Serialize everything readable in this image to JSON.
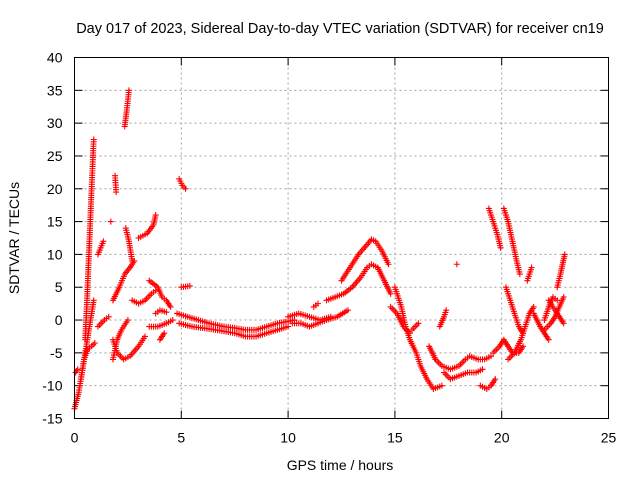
{
  "chart_data": {
    "type": "scatter",
    "title": "Day 017 of 2023, Sidereal Day-to-day VTEC variation (SDTVAR) for receiver cn19",
    "xlabel": "GPS time / hours",
    "ylabel": "SDTVAR / TECUs",
    "xlim": [
      0,
      25
    ],
    "ylim": [
      -15,
      40
    ],
    "xticks": [
      0,
      5,
      10,
      15,
      20,
      25
    ],
    "yticks": [
      -15,
      -10,
      -5,
      0,
      5,
      10,
      15,
      20,
      25,
      30,
      35,
      40
    ],
    "grid": true,
    "marker": "+",
    "color": "#ff0000",
    "tracks": [
      {
        "name": "track-01",
        "points": [
          [
            0.0,
            -13.5
          ],
          [
            0.2,
            -11
          ],
          [
            0.4,
            -7
          ],
          [
            0.6,
            -3
          ],
          [
            0.8,
            1
          ],
          [
            0.9,
            3
          ]
        ]
      },
      {
        "name": "track-02",
        "points": [
          [
            0.3,
            -9
          ],
          [
            0.45,
            -6
          ],
          [
            0.6,
            -4.5
          ],
          [
            0.8,
            -4
          ],
          [
            0.95,
            -3.5
          ]
        ]
      },
      {
        "name": "track-03",
        "points": [
          [
            0.05,
            -8
          ],
          [
            0.15,
            -7.5
          ]
        ]
      },
      {
        "name": "track-04",
        "points": [
          [
            0.5,
            -3
          ],
          [
            0.6,
            4
          ],
          [
            0.7,
            12
          ],
          [
            0.8,
            20
          ],
          [
            0.9,
            27.5
          ]
        ]
      },
      {
        "name": "track-05",
        "points": [
          [
            1.1,
            10
          ],
          [
            1.35,
            12
          ]
        ]
      },
      {
        "name": "track-06",
        "points": [
          [
            1.1,
            -1
          ],
          [
            1.4,
            0
          ],
          [
            1.6,
            0.5
          ]
        ]
      },
      {
        "name": "track-07",
        "points": [
          [
            1.7,
            15
          ]
        ]
      },
      {
        "name": "track-08",
        "points": [
          [
            1.9,
            22
          ],
          [
            1.95,
            19.5
          ]
        ]
      },
      {
        "name": "track-09",
        "points": [
          [
            2.35,
            29.5
          ],
          [
            2.45,
            32
          ],
          [
            2.55,
            35
          ]
        ]
      },
      {
        "name": "track-10",
        "points": [
          [
            1.8,
            3
          ],
          [
            2.1,
            5
          ],
          [
            2.35,
            7
          ],
          [
            2.6,
            8
          ],
          [
            2.8,
            9
          ]
        ]
      },
      {
        "name": "track-11",
        "points": [
          [
            2.4,
            14
          ],
          [
            2.55,
            12
          ],
          [
            2.7,
            9
          ]
        ]
      },
      {
        "name": "track-12",
        "points": [
          [
            1.8,
            -3
          ],
          [
            2.0,
            -5
          ],
          [
            2.3,
            -6
          ],
          [
            2.6,
            -5.5
          ],
          [
            3.0,
            -4
          ],
          [
            3.3,
            -2.5
          ]
        ]
      },
      {
        "name": "track-13",
        "points": [
          [
            1.8,
            -6
          ],
          [
            2.0,
            -3
          ],
          [
            2.2,
            -1.5
          ],
          [
            2.5,
            0
          ]
        ]
      },
      {
        "name": "track-14",
        "points": [
          [
            2.7,
            3
          ],
          [
            3.0,
            2.5
          ],
          [
            3.3,
            3
          ],
          [
            3.6,
            4
          ],
          [
            3.8,
            4.5
          ]
        ]
      },
      {
        "name": "track-15",
        "points": [
          [
            3.0,
            12.5
          ],
          [
            3.4,
            13.2
          ],
          [
            3.7,
            14.5
          ],
          [
            3.8,
            16
          ]
        ]
      },
      {
        "name": "track-16",
        "points": [
          [
            3.5,
            6
          ],
          [
            3.9,
            5
          ],
          [
            4.1,
            3.5
          ],
          [
            4.3,
            3
          ],
          [
            4.5,
            2
          ]
        ]
      },
      {
        "name": "track-17",
        "points": [
          [
            3.8,
            1
          ],
          [
            4.0,
            1.5
          ],
          [
            4.3,
            1.2
          ]
        ]
      },
      {
        "name": "track-18",
        "points": [
          [
            3.5,
            -1
          ],
          [
            3.9,
            -1
          ],
          [
            4.3,
            -0.5
          ],
          [
            4.6,
            0
          ]
        ]
      },
      {
        "name": "track-19",
        "points": [
          [
            4.0,
            -3
          ],
          [
            4.2,
            -2
          ]
        ]
      },
      {
        "name": "track-20",
        "points": [
          [
            4.9,
            21.5
          ],
          [
            5.05,
            20.5
          ],
          [
            5.2,
            20
          ]
        ]
      },
      {
        "name": "track-21",
        "points": [
          [
            5.0,
            5
          ],
          [
            5.4,
            5.2
          ]
        ]
      },
      {
        "name": "track-22",
        "points": [
          [
            4.8,
            1
          ],
          [
            5.3,
            0.5
          ],
          [
            5.8,
            0
          ],
          [
            6.3,
            -0.5
          ],
          [
            7,
            -1
          ],
          [
            7.5,
            -1.2
          ],
          [
            8,
            -1.5
          ],
          [
            8.5,
            -1.5
          ],
          [
            9,
            -1
          ],
          [
            9.5,
            -0.5
          ],
          [
            10,
            -0.2
          ],
          [
            10.3,
            0
          ]
        ]
      },
      {
        "name": "track-23",
        "points": [
          [
            4.9,
            -0.5
          ],
          [
            5.5,
            -1
          ],
          [
            6.2,
            -1.3
          ],
          [
            6.8,
            -1.6
          ],
          [
            7.5,
            -2
          ],
          [
            8,
            -2.5
          ],
          [
            8.5,
            -2.5
          ],
          [
            9,
            -2
          ],
          [
            9.5,
            -1.5
          ],
          [
            10,
            -1
          ]
        ]
      },
      {
        "name": "track-24",
        "points": [
          [
            10,
            0.5
          ],
          [
            10.5,
            1
          ],
          [
            11,
            0.5
          ],
          [
            11.5,
            0
          ],
          [
            12,
            0.5
          ]
        ]
      },
      {
        "name": "track-25",
        "points": [
          [
            10.2,
            -0.5
          ],
          [
            10.6,
            -0.5
          ],
          [
            11,
            -1
          ],
          [
            11.4,
            -0.5
          ],
          [
            11.8,
            0
          ],
          [
            12.3,
            0.5
          ],
          [
            12.8,
            1.5
          ]
        ]
      },
      {
        "name": "track-26",
        "points": [
          [
            11.2,
            2
          ],
          [
            11.4,
            2.5
          ]
        ]
      },
      {
        "name": "track-27",
        "points": [
          [
            11.8,
            3
          ],
          [
            12.2,
            3.5
          ],
          [
            12.6,
            4
          ],
          [
            13.0,
            5
          ],
          [
            13.4,
            6.5
          ],
          [
            13.7,
            8
          ],
          [
            13.9,
            8.5
          ],
          [
            14.2,
            8
          ],
          [
            14.5,
            6
          ],
          [
            14.8,
            4
          ]
        ]
      },
      {
        "name": "track-28",
        "points": [
          [
            12.5,
            6
          ],
          [
            12.9,
            8
          ],
          [
            13.3,
            10
          ],
          [
            13.7,
            11.5
          ],
          [
            13.9,
            12.3
          ],
          [
            14.1,
            12
          ],
          [
            14.4,
            10.5
          ],
          [
            14.7,
            8.5
          ]
        ]
      },
      {
        "name": "track-29",
        "points": [
          [
            15.0,
            5
          ],
          [
            15.3,
            2
          ],
          [
            15.5,
            -1
          ],
          [
            15.7,
            -3
          ],
          [
            16.0,
            -5
          ],
          [
            16.2,
            -7
          ],
          [
            16.5,
            -9
          ],
          [
            16.8,
            -10.5
          ],
          [
            17.2,
            -10
          ]
        ]
      },
      {
        "name": "track-30",
        "points": [
          [
            14.8,
            2
          ],
          [
            15.1,
            1
          ],
          [
            15.4,
            -1
          ],
          [
            15.7,
            -2
          ]
        ]
      },
      {
        "name": "track-31",
        "points": [
          [
            15.8,
            -1.5
          ],
          [
            16.1,
            -0.5
          ]
        ]
      },
      {
        "name": "track-32",
        "points": [
          [
            16.6,
            -4
          ],
          [
            16.9,
            -6
          ],
          [
            17.2,
            -7
          ],
          [
            17.6,
            -7.5
          ],
          [
            18,
            -7
          ],
          [
            18.3,
            -6
          ],
          [
            18.5,
            -5.5
          ],
          [
            18.9,
            -6
          ],
          [
            19.2,
            -6
          ],
          [
            19.5,
            -5.5
          ]
        ]
      },
      {
        "name": "track-33",
        "points": [
          [
            17.3,
            -8
          ],
          [
            17.6,
            -9
          ],
          [
            18,
            -8.5
          ],
          [
            18.4,
            -8
          ],
          [
            18.8,
            -8
          ],
          [
            19.1,
            -7.5
          ]
        ]
      },
      {
        "name": "track-34",
        "points": [
          [
            17.1,
            -1
          ],
          [
            17.3,
            0.5
          ],
          [
            17.4,
            1.5
          ]
        ]
      },
      {
        "name": "track-35",
        "points": [
          [
            17.9,
            8.5
          ]
        ]
      },
      {
        "name": "track-36",
        "points": [
          [
            19.0,
            -10
          ],
          [
            19.3,
            -10.5
          ],
          [
            19.5,
            -10
          ],
          [
            19.7,
            -9
          ]
        ]
      },
      {
        "name": "track-37",
        "points": [
          [
            19.4,
            17
          ],
          [
            19.6,
            15
          ],
          [
            19.8,
            13
          ],
          [
            19.95,
            11
          ]
        ]
      },
      {
        "name": "track-38",
        "points": [
          [
            19.6,
            -5
          ],
          [
            19.9,
            -4
          ],
          [
            20.1,
            -3
          ],
          [
            20.3,
            -4
          ],
          [
            20.5,
            -5
          ],
          [
            20.8,
            -5
          ],
          [
            21.0,
            -4
          ]
        ]
      },
      {
        "name": "track-39",
        "points": [
          [
            20.1,
            17
          ],
          [
            20.3,
            15
          ],
          [
            20.5,
            12
          ],
          [
            20.7,
            9
          ],
          [
            20.85,
            7
          ]
        ]
      },
      {
        "name": "track-40",
        "points": [
          [
            20.2,
            5
          ],
          [
            20.4,
            3
          ],
          [
            20.6,
            1
          ],
          [
            20.8,
            -1
          ],
          [
            21.0,
            -2
          ]
        ]
      },
      {
        "name": "track-41",
        "points": [
          [
            20.3,
            -6
          ],
          [
            20.6,
            -5
          ],
          [
            20.9,
            -3
          ],
          [
            21.1,
            -1
          ],
          [
            21.3,
            1
          ],
          [
            21.5,
            2
          ]
        ]
      },
      {
        "name": "track-42",
        "points": [
          [
            21.2,
            6
          ],
          [
            21.4,
            8
          ]
        ]
      },
      {
        "name": "track-43",
        "points": [
          [
            21.5,
            1
          ],
          [
            21.8,
            -1
          ],
          [
            22.0,
            -2
          ],
          [
            22.2,
            -3
          ]
        ]
      },
      {
        "name": "track-44",
        "points": [
          [
            22.0,
            0
          ],
          [
            22.2,
            2
          ],
          [
            22.4,
            3.5
          ],
          [
            22.6,
            3
          ]
        ]
      },
      {
        "name": "track-45",
        "points": [
          [
            22.0,
            -1.5
          ],
          [
            22.3,
            -0.5
          ],
          [
            22.5,
            0.5
          ],
          [
            22.7,
            2
          ],
          [
            22.9,
            3.5
          ]
        ]
      },
      {
        "name": "track-46",
        "points": [
          [
            22.2,
            3
          ],
          [
            22.5,
            1.5
          ],
          [
            22.7,
            0.5
          ],
          [
            22.9,
            -0.5
          ]
        ]
      },
      {
        "name": "track-47",
        "points": [
          [
            22.6,
            5
          ],
          [
            22.75,
            7
          ],
          [
            22.85,
            8.5
          ],
          [
            22.95,
            10
          ]
        ]
      }
    ]
  }
}
